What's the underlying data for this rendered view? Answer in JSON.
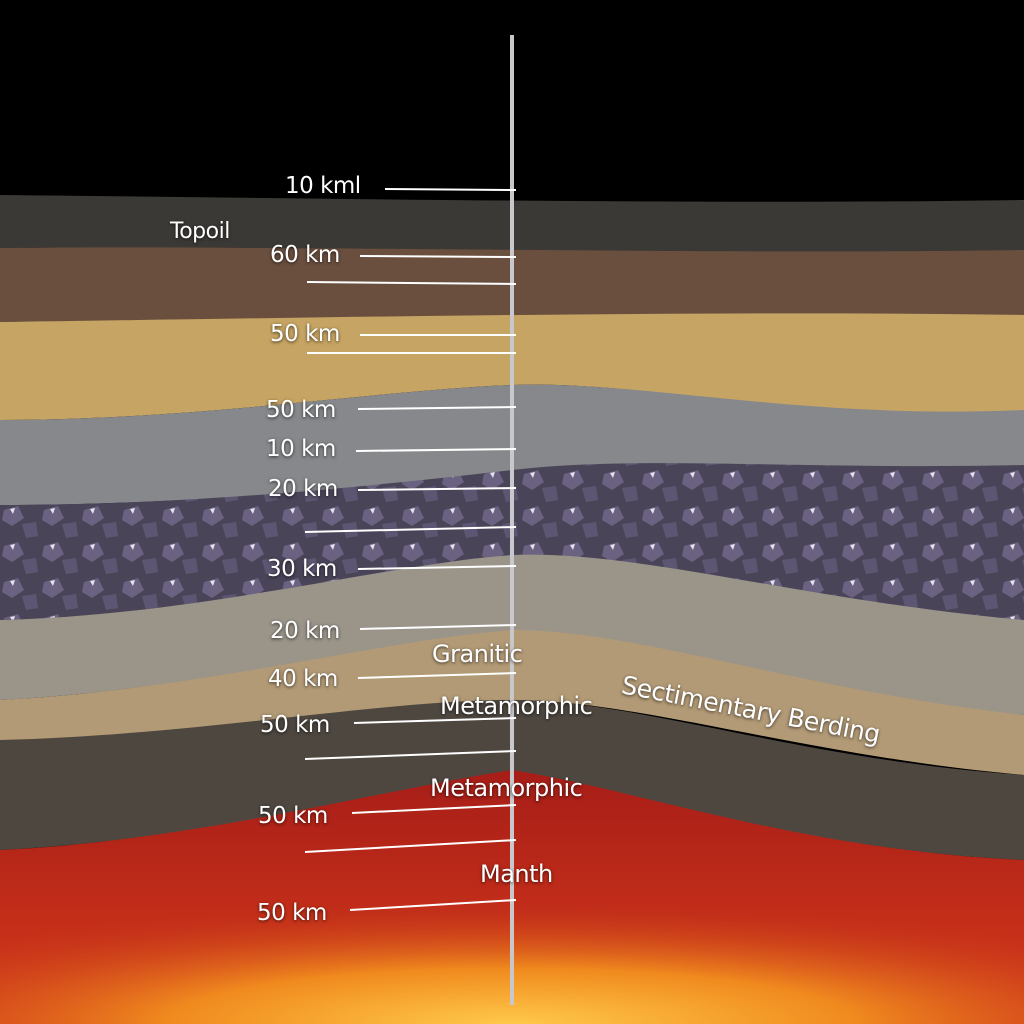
{
  "depth_labels": [
    "10 kml",
    "60 km",
    "50 km",
    "50 km",
    "10 km",
    "20 km",
    "30 km",
    "20 km",
    "40 km",
    "50 km",
    "50 km",
    "50 km"
  ],
  "layer_labels": {
    "topsoil": "Topoil",
    "granitic": "Granitic",
    "metamorphic_1": "Metamorphic",
    "metamorphic_2": "Metamorphic",
    "mantle": "Manth",
    "sedimentary": "Sectimentary Berding"
  },
  "colors": {
    "background": "#000000",
    "topsoil": "#3b3935",
    "brown": "#6a4f3f",
    "sand": "#c6a463",
    "gray": "#86888b",
    "crystal": "#4a4459",
    "granite": "#9a9489",
    "tan": "#b29a76",
    "dark_rock": "#4e4740",
    "mantle": "#b0221a",
    "core": "#f39a22"
  }
}
